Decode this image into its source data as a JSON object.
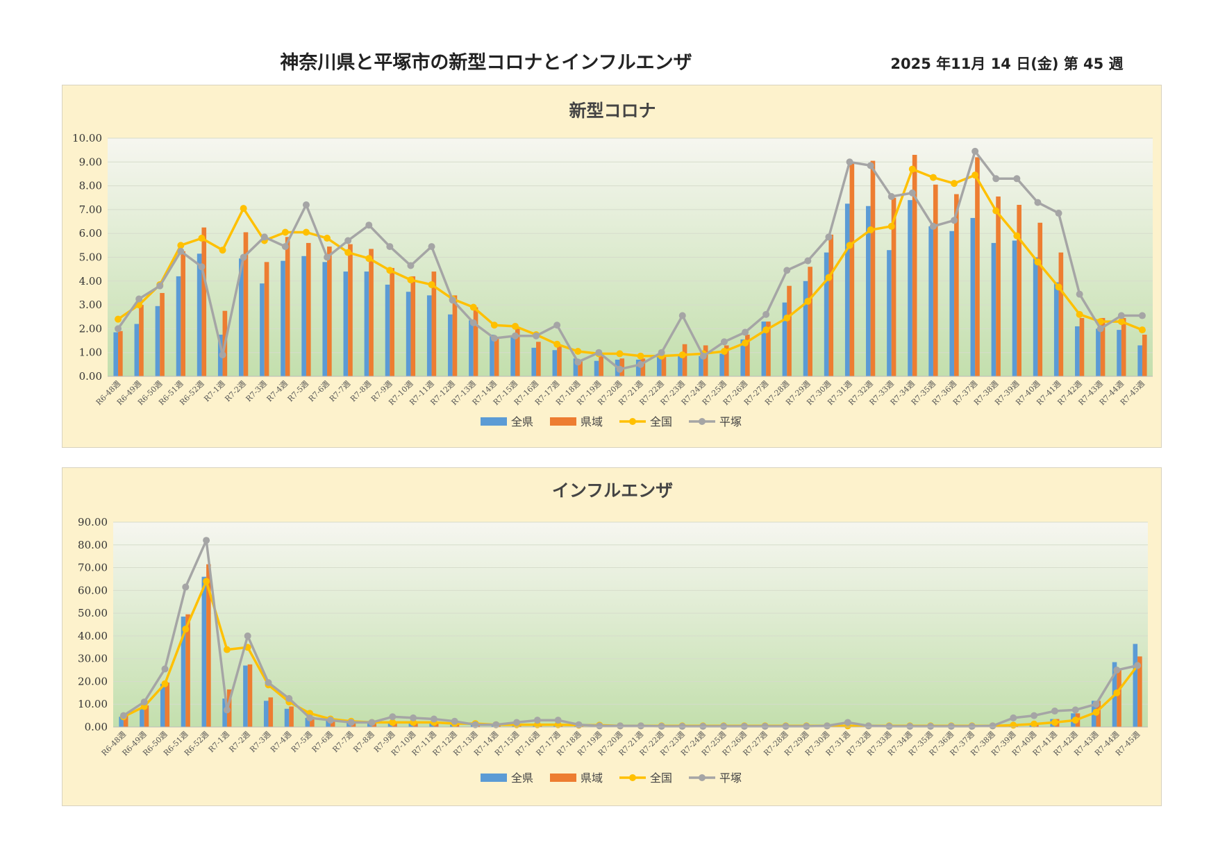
{
  "header": {
    "title": "神奈川県と平塚市の新型コロナとインフルエンザ",
    "date": "2025 年11月 14 日(金) 第 45 週"
  },
  "colors": {
    "zenken": "#5b9bd5",
    "kenjo": "#ed7d31",
    "zenkoku": "#ffc000",
    "hiratsuka": "#a5a5a5",
    "panel_bg": "#fdf2cc",
    "plot_bg_top": "#f6f6f0",
    "plot_bg_bottom": "#c3dfad"
  },
  "chart_data": [
    {
      "id": "covid",
      "type": "bar",
      "title": "新型コロナ",
      "ylim": [
        0,
        10
      ],
      "yticks": [
        "0.00",
        "1.00",
        "2.00",
        "3.00",
        "4.00",
        "5.00",
        "6.00",
        "7.00",
        "8.00",
        "9.00",
        "10.00"
      ],
      "grid": true,
      "legend_position": "bottom",
      "categories": [
        "R6-48週",
        "R6-49週",
        "R6-50週",
        "R6-51週",
        "R6-52週",
        "R7-1週",
        "R7-2週",
        "R7-3週",
        "R7-4週",
        "R7-5週",
        "R7-6週",
        "R7-7週",
        "R7-8週",
        "R7-9週",
        "R7-10週",
        "R7-11週",
        "R7-12週",
        "R7-13週",
        "R7-14週",
        "R7-15週",
        "R7-16週",
        "R7-17週",
        "R7-18週",
        "R7-19週",
        "R7-20週",
        "R7-21週",
        "R7-22週",
        "R7-23週",
        "R7-24週",
        "R7-25週",
        "R7-26週",
        "R7-27週",
        "R7-28週",
        "R7-29週",
        "R7-30週",
        "R7-31週",
        "R7-32週",
        "R7-33週",
        "R7-34週",
        "R7-35週",
        "R7-36週",
        "R7-37週",
        "R7-38週",
        "R7-39週",
        "R7-40週",
        "R7-41週",
        "R7-42週",
        "R7-43週",
        "R7-44週",
        "R7-45週"
      ],
      "series": [
        {
          "name": "全県",
          "type": "bar",
          "values": [
            1.85,
            2.2,
            2.95,
            4.2,
            5.15,
            1.75,
            4.95,
            3.9,
            4.85,
            5.05,
            4.8,
            4.4,
            4.4,
            3.85,
            3.55,
            3.4,
            2.6,
            2.35,
            1.75,
            1.65,
            1.2,
            1.1,
            0.75,
            0.65,
            0.7,
            0.7,
            0.85,
            0.9,
            0.85,
            0.95,
            1.55,
            2.3,
            3.1,
            4.0,
            5.2,
            7.25,
            7.15,
            5.3,
            7.4,
            6.3,
            6.1,
            6.65,
            5.6,
            5.7,
            5.0,
            3.95,
            2.1,
            2.0,
            1.95,
            1.3
          ]
        },
        {
          "name": "県域",
          "type": "bar",
          "values": [
            1.9,
            3.0,
            3.5,
            5.25,
            6.25,
            2.75,
            6.05,
            4.8,
            5.85,
            5.6,
            5.45,
            5.55,
            5.35,
            4.55,
            4.2,
            4.4,
            3.4,
            2.9,
            1.65,
            2.0,
            1.45,
            1.3,
            0.7,
            0.9,
            0.75,
            0.75,
            0.9,
            1.35,
            1.3,
            1.3,
            1.75,
            2.3,
            3.8,
            4.6,
            5.95,
            9.0,
            9.05,
            7.5,
            9.3,
            8.05,
            7.65,
            9.2,
            7.55,
            7.2,
            6.45,
            5.2,
            2.45,
            2.45,
            2.45,
            1.75
          ]
        },
        {
          "name": "全国",
          "type": "line",
          "values": [
            2.4,
            3.0,
            3.85,
            5.5,
            5.8,
            5.3,
            7.05,
            5.7,
            6.05,
            6.05,
            5.8,
            5.2,
            4.95,
            4.45,
            4.05,
            3.85,
            3.25,
            2.9,
            2.15,
            2.1,
            1.75,
            1.35,
            1.05,
            0.95,
            0.95,
            0.85,
            0.85,
            0.9,
            0.95,
            1.05,
            1.4,
            1.95,
            2.45,
            3.15,
            4.15,
            5.5,
            6.15,
            6.3,
            8.7,
            8.35,
            8.1,
            8.45,
            6.95,
            5.9,
            4.8,
            3.75,
            2.6,
            2.3,
            2.3,
            1.95
          ]
        },
        {
          "name": "平塚",
          "type": "line",
          "values": [
            2.0,
            3.25,
            3.8,
            5.25,
            4.6,
            0.9,
            5.0,
            5.85,
            5.45,
            7.2,
            5.0,
            5.7,
            6.35,
            5.45,
            4.65,
            5.45,
            3.2,
            2.25,
            1.6,
            1.7,
            1.7,
            2.15,
            0.6,
            1.0,
            0.3,
            0.5,
            1.0,
            2.55,
            0.85,
            1.45,
            1.85,
            2.6,
            4.45,
            4.85,
            5.85,
            9.0,
            8.85,
            7.55,
            7.7,
            6.3,
            6.55,
            9.45,
            8.3,
            8.3,
            7.3,
            6.85,
            3.45,
            2.0,
            2.55,
            2.55
          ]
        }
      ]
    },
    {
      "id": "flu",
      "type": "bar",
      "title": "インフルエンザ",
      "ylim": [
        0,
        90
      ],
      "yticks": [
        "0.00",
        "10.00",
        "20.00",
        "30.00",
        "40.00",
        "50.00",
        "60.00",
        "70.00",
        "80.00",
        "90.00"
      ],
      "grid": true,
      "legend_position": "bottom",
      "categories": [
        "R6-48週",
        "R6-49週",
        "R6-50週",
        "R6-51週",
        "R6-52週",
        "R7-1週",
        "R7-2週",
        "R7-3週",
        "R7-4週",
        "R7-5週",
        "R7-6週",
        "R7-7週",
        "R7-8週",
        "R7-9週",
        "R7-10週",
        "R7-11週",
        "R7-12週",
        "R7-13週",
        "R7-14週",
        "R7-15週",
        "R7-16週",
        "R7-17週",
        "R7-18週",
        "R7-19週",
        "R7-20週",
        "R7-21週",
        "R7-22週",
        "R7-23週",
        "R7-24週",
        "R7-25週",
        "R7-26週",
        "R7-27週",
        "R7-28週",
        "R7-29週",
        "R7-30週",
        "R7-31週",
        "R7-32週",
        "R7-33週",
        "R7-34週",
        "R7-35週",
        "R7-36週",
        "R7-37週",
        "R7-38週",
        "R7-39週",
        "R7-40週",
        "R7-41週",
        "R7-42週",
        "R7-43週",
        "R7-44週",
        "R7-45週"
      ],
      "series": [
        {
          "name": "全県",
          "type": "bar",
          "values": [
            4.5,
            8.5,
            19.0,
            48.5,
            66.0,
            12.5,
            27.0,
            11.5,
            8.0,
            4.0,
            3.0,
            2.0,
            1.5,
            1.5,
            1.5,
            1.5,
            1.0,
            1.0,
            0.5,
            0.5,
            0.5,
            0.5,
            0.5,
            0.5,
            0.3,
            0.3,
            0.3,
            0.3,
            0.3,
            0.3,
            0.3,
            0.3,
            0.3,
            0.3,
            0.3,
            0.3,
            0.3,
            0.3,
            0.3,
            0.3,
            0.3,
            0.3,
            0.5,
            1.0,
            1.5,
            3.5,
            6.0,
            11.5,
            28.5,
            36.5
          ]
        },
        {
          "name": "県域",
          "type": "bar",
          "values": [
            5.0,
            9.5,
            19.5,
            49.5,
            71.5,
            16.5,
            27.5,
            13.0,
            9.0,
            4.5,
            3.0,
            2.0,
            1.5,
            1.5,
            1.5,
            1.5,
            1.0,
            1.0,
            0.5,
            0.5,
            0.5,
            0.5,
            0.5,
            0.5,
            0.3,
            0.3,
            0.3,
            0.3,
            0.3,
            0.3,
            0.3,
            0.3,
            0.3,
            0.3,
            0.3,
            0.3,
            0.3,
            0.3,
            0.3,
            0.3,
            0.3,
            0.3,
            0.5,
            1.0,
            1.5,
            3.5,
            6.0,
            11.5,
            25.5,
            31.0
          ]
        },
        {
          "name": "全国",
          "type": "line",
          "values": [
            4.5,
            9.0,
            19.0,
            43.0,
            64.0,
            34.0,
            35.0,
            18.5,
            11.0,
            6.0,
            3.5,
            2.5,
            2.0,
            2.0,
            2.0,
            2.0,
            1.5,
            1.5,
            1.0,
            1.0,
            1.0,
            1.0,
            0.8,
            0.8,
            0.5,
            0.5,
            0.5,
            0.5,
            0.5,
            0.5,
            0.5,
            0.5,
            0.5,
            0.5,
            0.5,
            0.5,
            0.5,
            0.5,
            0.5,
            0.5,
            0.5,
            0.5,
            0.5,
            0.8,
            1.3,
            2.0,
            3.0,
            6.5,
            15.0,
            27.0
          ]
        },
        {
          "name": "平塚",
          "type": "line",
          "values": [
            5.0,
            11.0,
            25.5,
            61.5,
            82.0,
            7.5,
            40.0,
            19.5,
            12.5,
            4.0,
            3.0,
            2.0,
            2.0,
            4.5,
            4.0,
            3.5,
            2.5,
            1.0,
            1.0,
            2.0,
            3.0,
            3.0,
            1.0,
            0.5,
            0.5,
            0.5,
            0.3,
            0.3,
            0.3,
            0.3,
            0.3,
            0.3,
            0.3,
            0.3,
            0.5,
            2.0,
            0.5,
            0.3,
            0.3,
            0.3,
            0.3,
            0.3,
            0.5,
            4.0,
            5.0,
            7.0,
            7.5,
            10.0,
            25.0,
            27.0
          ]
        }
      ]
    }
  ]
}
